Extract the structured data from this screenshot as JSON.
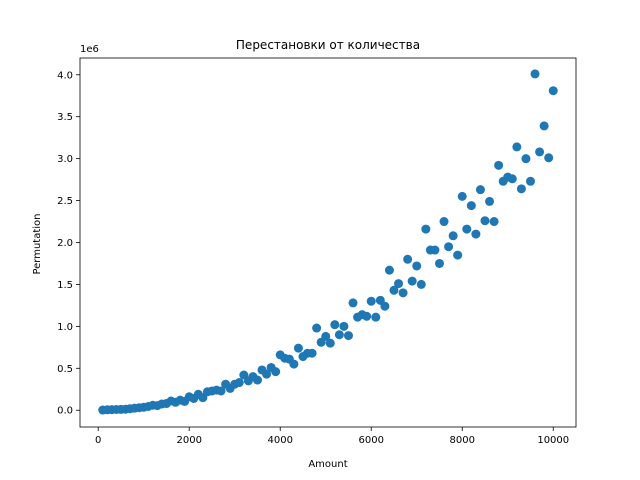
{
  "chart_data": {
    "type": "scatter",
    "title": "Перестановки от количества",
    "xlabel": "Amount",
    "ylabel": "Permutation",
    "y_offset_label": "1e6",
    "xlim": [
      -400,
      10500
    ],
    "ylim": [
      -200000,
      4200000
    ],
    "x_ticks": [
      0,
      2000,
      4000,
      6000,
      8000,
      10000
    ],
    "x_tick_labels": [
      "0",
      "2000",
      "4000",
      "6000",
      "8000",
      "10000"
    ],
    "y_ticks": [
      0,
      500000,
      1000000,
      1500000,
      2000000,
      2500000,
      3000000,
      3500000,
      4000000
    ],
    "y_tick_labels": [
      "0.0",
      "0.5",
      "1.0",
      "1.5",
      "2.0",
      "2.5",
      "3.0",
      "3.5",
      "4.0"
    ],
    "grid": false,
    "marker_color": "#1f77b4",
    "series": [
      {
        "x": [
          100,
          200,
          300,
          400,
          500,
          600,
          700,
          800,
          900,
          1000,
          1100,
          1200,
          1300,
          1400,
          1500,
          1600,
          1700,
          1800,
          1900,
          2000,
          2100,
          2200,
          2300,
          2400,
          2500,
          2600,
          2700,
          2800,
          2900,
          3000,
          3100,
          3200,
          3300,
          3400,
          3500,
          3600,
          3700,
          3800,
          3900,
          4000,
          4100,
          4200,
          4300,
          4400,
          4500,
          4600,
          4700,
          4800,
          4900,
          5000,
          5100,
          5200,
          5300,
          5400,
          5500,
          5600,
          5700,
          5800,
          5900,
          6000,
          6100,
          6200,
          6300,
          6400,
          6500,
          6600,
          6700,
          6800,
          6900,
          7000,
          7100,
          7200,
          7300,
          7400,
          7500,
          7600,
          7700,
          7800,
          7900,
          8000,
          8100,
          8200,
          8300,
          8400,
          8500,
          8600,
          8700,
          8800,
          8900,
          9000,
          9100,
          9200,
          9300,
          9400,
          9500,
          9600,
          9700,
          9800,
          9900,
          10000
        ],
        "y": [
          2000,
          5000,
          7000,
          9000,
          10000,
          12000,
          18000,
          25000,
          30000,
          35000,
          45000,
          60000,
          55000,
          75000,
          80000,
          110000,
          95000,
          120000,
          105000,
          160000,
          140000,
          190000,
          150000,
          220000,
          230000,
          240000,
          230000,
          310000,
          260000,
          310000,
          330000,
          420000,
          350000,
          400000,
          360000,
          480000,
          430000,
          510000,
          460000,
          660000,
          620000,
          610000,
          550000,
          740000,
          640000,
          680000,
          680000,
          980000,
          810000,
          880000,
          800000,
          1020000,
          900000,
          1000000,
          890000,
          1280000,
          1110000,
          1140000,
          1120000,
          1300000,
          1110000,
          1310000,
          1240000,
          1670000,
          1430000,
          1510000,
          1400000,
          1800000,
          1540000,
          1720000,
          1500000,
          2160000,
          1910000,
          1910000,
          1750000,
          2250000,
          1950000,
          2080000,
          1850000,
          2550000,
          2160000,
          2440000,
          2100000,
          2630000,
          2260000,
          2490000,
          2250000,
          2920000,
          2730000,
          2780000,
          2760000,
          3140000,
          2640000,
          3000000,
          2730000,
          4010000,
          3080000,
          3390000,
          3010000,
          3810000
        ]
      }
    ]
  }
}
